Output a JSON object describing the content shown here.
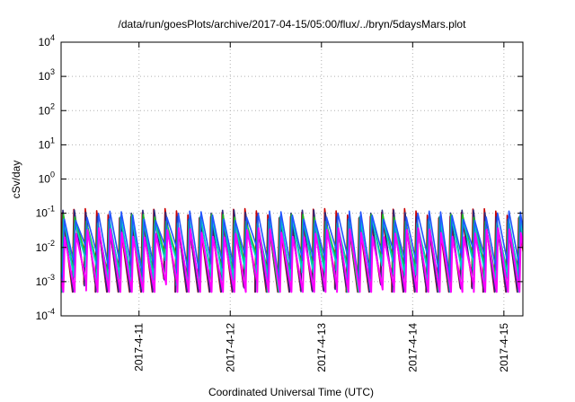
{
  "chart_data": {
    "type": "line",
    "title": "/data/run/goesPlots/archive/2017-04-15/05:00/flux/../bryn/5daysMars.plot",
    "xlabel": "Coordinated Universal Time (UTC)",
    "ylabel": "cSv/day",
    "yscale": "log",
    "ylim": [
      0.0001,
      10000
    ],
    "xlim": [
      "2017-04-10 03:30",
      "2017-04-15 05:00"
    ],
    "x_ticks": [
      "2017-4-11",
      "2017-4-12",
      "2017-4-13",
      "2017-4-14",
      "2017-4-15"
    ],
    "y_ticks": [
      {
        "base": "10",
        "exp": "-4"
      },
      {
        "base": "10",
        "exp": "-3"
      },
      {
        "base": "10",
        "exp": "-2"
      },
      {
        "base": "10",
        "exp": "-1"
      },
      {
        "base": "10",
        "exp": "0"
      },
      {
        "base": "10",
        "exp": "1"
      },
      {
        "base": "10",
        "exp": "2"
      },
      {
        "base": "10",
        "exp": "3"
      },
      {
        "base": "10",
        "exp": "4"
      }
    ],
    "grid": true,
    "legend": "none",
    "series": [
      {
        "color": "#cc0000",
        "peak": 0.13,
        "trough": 0.0012
      },
      {
        "color": "#2a2a7a",
        "peak": 0.12,
        "trough": 0.0011
      },
      {
        "color": "#22bb22",
        "peak": 0.09,
        "trough": 0.006
      },
      {
        "color": "#00cccc",
        "peak": 0.08,
        "trough": 0.004
      },
      {
        "color": "#2255ff",
        "peak": 0.11,
        "trough": 0.009
      },
      {
        "color": "#ff00ff",
        "peak": 0.035,
        "trough": 0.0008
      }
    ]
  }
}
